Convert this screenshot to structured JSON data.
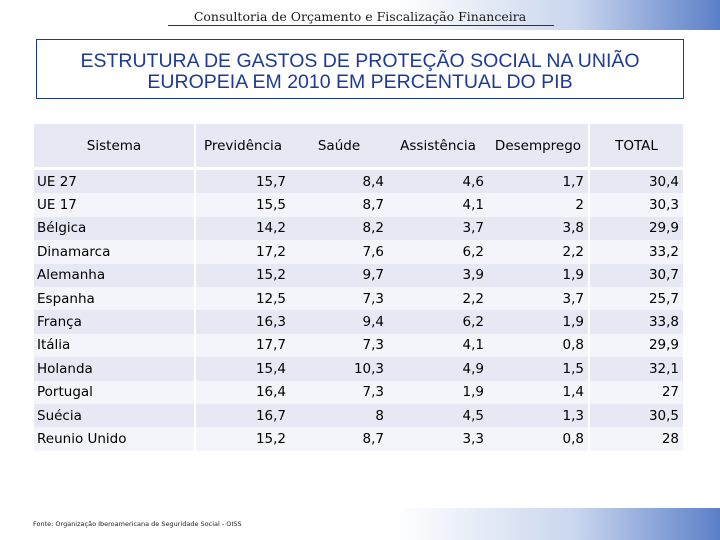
{
  "header": {
    "title": "Consultoria de Orçamento e Fiscalização Financeira"
  },
  "main_title": {
    "line1": "ESTRUTURA DE GASTOS DE PROTEÇÃO SOCIAL NA UNIÃO",
    "line2": "EUROPEIA EM 2010 EM PERCENTUAL DO PIB"
  },
  "table": {
    "headers": [
      "Sistema",
      "Previdência",
      "Saúde",
      "Assistência",
      "Desemprego",
      "TOTAL"
    ],
    "rows": [
      {
        "name": "UE 27",
        "previdencia": "15,7",
        "saude": "8,4",
        "assistencia": "4,6",
        "desemprego": "1,7",
        "total": "30,4"
      },
      {
        "name": "UE 17",
        "previdencia": "15,5",
        "saude": "8,7",
        "assistencia": "4,1",
        "desemprego": "2",
        "total": "30,3"
      },
      {
        "name": "Bélgica",
        "previdencia": "14,2",
        "saude": "8,2",
        "assistencia": "3,7",
        "desemprego": "3,8",
        "total": "29,9"
      },
      {
        "name": "Dinamarca",
        "previdencia": "17,2",
        "saude": "7,6",
        "assistencia": "6,2",
        "desemprego": "2,2",
        "total": "33,2"
      },
      {
        "name": "Alemanha",
        "previdencia": "15,2",
        "saude": "9,7",
        "assistencia": "3,9",
        "desemprego": "1,9",
        "total": "30,7"
      },
      {
        "name": "Espanha",
        "previdencia": "12,5",
        "saude": "7,3",
        "assistencia": "2,2",
        "desemprego": "3,7",
        "total": "25,7"
      },
      {
        "name": "França",
        "previdencia": "16,3",
        "saude": "9,4",
        "assistencia": "6,2",
        "desemprego": "1,9",
        "total": "33,8"
      },
      {
        "name": "Itália",
        "previdencia": "17,7",
        "saude": "7,3",
        "assistencia": "4,1",
        "desemprego": "0,8",
        "total": "29,9"
      },
      {
        "name": "Holanda",
        "previdencia": "15,4",
        "saude": "10,3",
        "assistencia": "4,9",
        "desemprego": "1,5",
        "total": "32,1"
      },
      {
        "name": "Portugal",
        "previdencia": "16,4",
        "saude": "7,3",
        "assistencia": "1,9",
        "desemprego": "1,4",
        "total": "27"
      },
      {
        "name": "Suécia",
        "previdencia": "16,7",
        "saude": "8",
        "assistencia": "4,5",
        "desemprego": "1,3",
        "total": "30,5"
      },
      {
        "name": "Reunio Unido",
        "previdencia": "15,2",
        "saude": "8,7",
        "assistencia": "3,3",
        "desemprego": "0,8",
        "total": "28"
      }
    ]
  },
  "footer": {
    "source": "Fonte: Organização Iberoamericana de Seguridade Social - OISS"
  },
  "colors": {
    "title_blue": "#1f3a93",
    "row_band": "#e6e9f3",
    "row_alt": "#f4f5fa",
    "band_accent": "#5b7fc8"
  }
}
